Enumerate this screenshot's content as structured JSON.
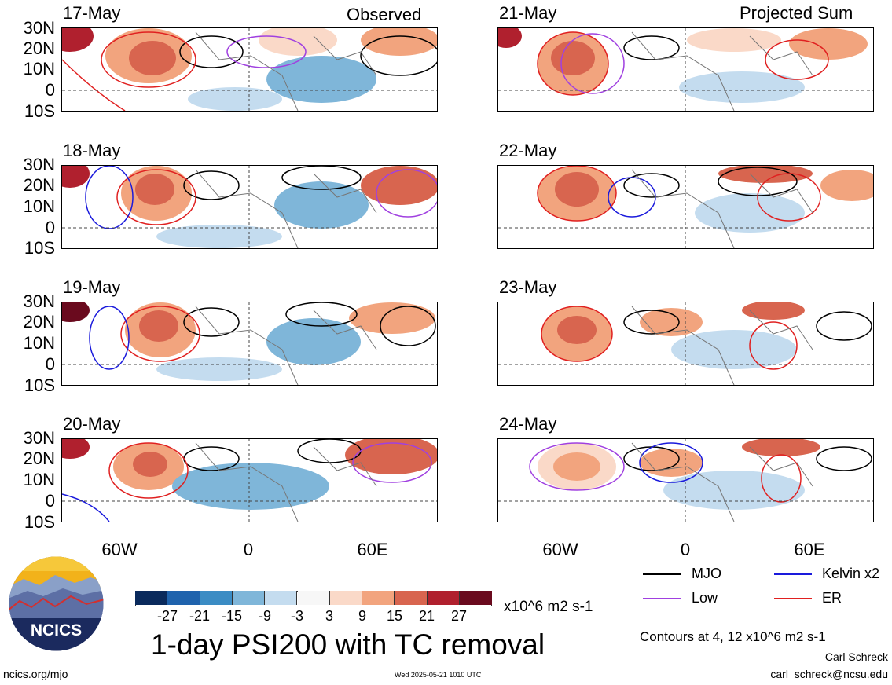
{
  "header": {
    "left_title": "Observed",
    "right_title": "Projected Sum"
  },
  "panels_left": [
    {
      "date": "17-May"
    },
    {
      "date": "18-May"
    },
    {
      "date": "19-May"
    },
    {
      "date": "20-May"
    }
  ],
  "panels_right": [
    {
      "date": "21-May"
    },
    {
      "date": "22-May"
    },
    {
      "date": "23-May"
    },
    {
      "date": "24-May"
    }
  ],
  "lat_labels": [
    "30N",
    "20N",
    "10N",
    "0",
    "10S"
  ],
  "lon_labels": [
    "60W",
    "0",
    "60E"
  ],
  "legend": {
    "items": [
      {
        "label": "MJO",
        "color": "#000000"
      },
      {
        "label": "Kelvin x2",
        "color": "#1a1adc"
      },
      {
        "label": "Low",
        "color": "#a040e0"
      },
      {
        "label": "ER",
        "color": "#e02020"
      }
    ],
    "contours_note": "Contours at 4, 12 x10^6 m2 s-1"
  },
  "colorbar": {
    "colors": [
      "#0a2a5c",
      "#1f63ad",
      "#3b8cc4",
      "#7fb6d9",
      "#c4dcef",
      "#f7f7f7",
      "#fad9c8",
      "#f2a47e",
      "#d8654f",
      "#b0202e",
      "#6a0a1e"
    ],
    "labels": [
      "-27",
      "-21",
      "-15",
      "-9",
      "-3",
      "3",
      "9",
      "15",
      "21",
      "27"
    ],
    "units": "x10^6 m2 s-1"
  },
  "title": "1-day PSI200 with TC removal",
  "footer": {
    "url": "ncics.org/mjo",
    "timestamp": "Wed 2025-05-21 1010 UTC",
    "author": "Carl Schreck",
    "email": "carl_schreck@ncsu.edu"
  },
  "logo": {
    "text": "NCICS"
  }
}
